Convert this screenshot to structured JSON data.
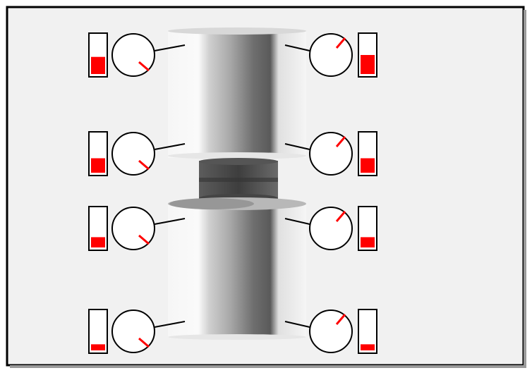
{
  "colors": {
    "background": "#f1f1f1",
    "frame": "#000000",
    "indicator": "#ff0000",
    "dial_face": "#ffffff",
    "stroke": "#000000"
  },
  "sensors": [
    {
      "id": "left-1",
      "side": "left",
      "level": 0.45,
      "dial": "needle-lower-right"
    },
    {
      "id": "left-2",
      "side": "left",
      "level": 0.38,
      "dial": "needle-lower-right"
    },
    {
      "id": "left-3",
      "side": "left",
      "level": 0.27,
      "dial": "needle-lower-right"
    },
    {
      "id": "left-4",
      "side": "left",
      "level": 0.16,
      "dial": "needle-lower-right"
    },
    {
      "id": "right-1",
      "side": "right",
      "level": 0.5,
      "dial": "needle-upper-right"
    },
    {
      "id": "right-2",
      "side": "right",
      "level": 0.38,
      "dial": "needle-upper-right"
    },
    {
      "id": "right-3",
      "side": "right",
      "level": 0.27,
      "dial": "needle-upper-right"
    },
    {
      "id": "right-4",
      "side": "right",
      "level": 0.16,
      "dial": "needle-upper-right"
    }
  ]
}
